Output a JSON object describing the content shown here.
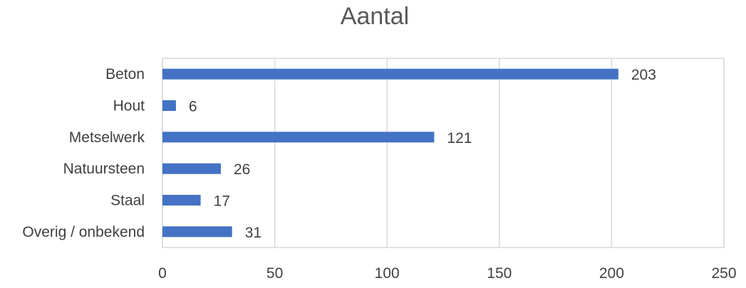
{
  "chart_data": {
    "type": "bar",
    "orientation": "horizontal",
    "title": "Aantal",
    "xlabel": "",
    "ylabel": "",
    "categories": [
      "Beton",
      "Hout",
      "Metselwerk",
      "Natuursteen",
      "Staal",
      "Overig / onbekend"
    ],
    "values": [
      203,
      6,
      121,
      26,
      17,
      31
    ],
    "data_labels": [
      "203",
      "6",
      "121",
      "26",
      "17",
      "31"
    ],
    "xlim": [
      0,
      250
    ],
    "x_ticks": [
      0,
      50,
      100,
      150,
      200,
      250
    ],
    "x_tick_labels": [
      "0",
      "50",
      "100",
      "150",
      "200",
      "250"
    ],
    "grid": true,
    "legend": "none",
    "bar_color": "#4472c4"
  }
}
